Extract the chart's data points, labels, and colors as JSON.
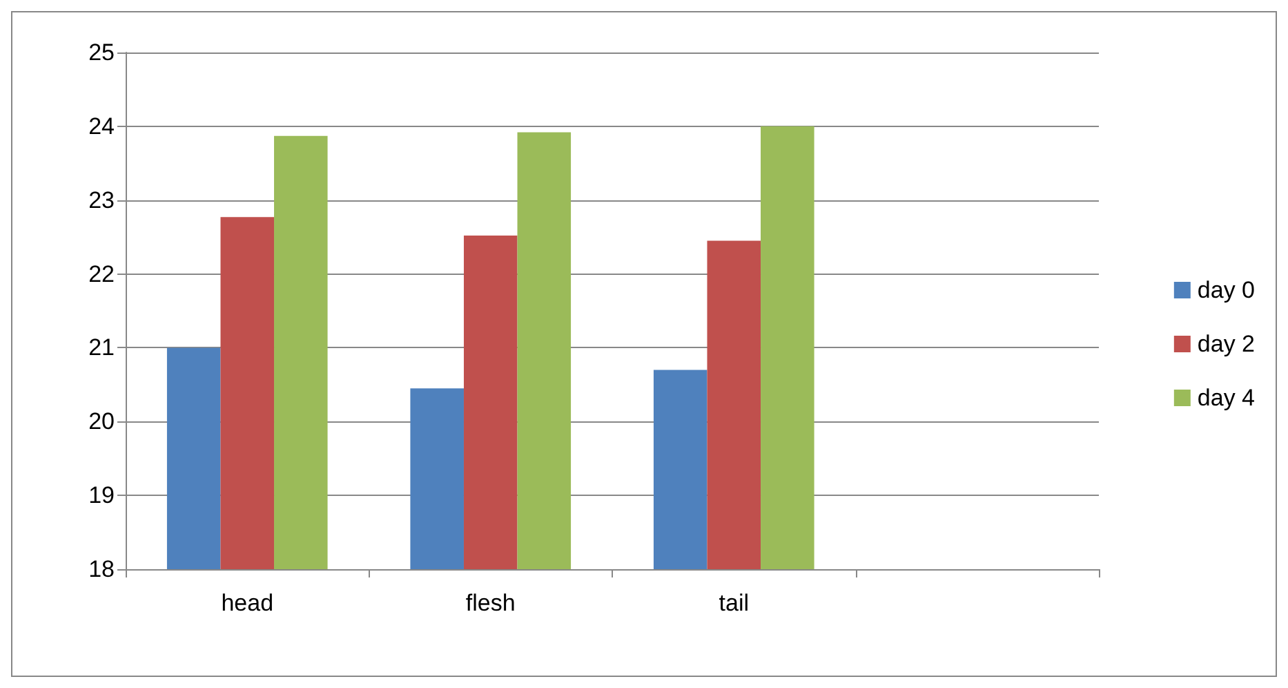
{
  "chart_data": {
    "type": "bar",
    "categories": [
      "head",
      "flesh",
      "tail",
      null
    ],
    "series": [
      {
        "name": "day 0",
        "color": "#4f81bd",
        "values": [
          21.0,
          20.45,
          20.7,
          null
        ]
      },
      {
        "name": "day 2",
        "color": "#c0504d",
        "values": [
          22.77,
          22.52,
          22.45,
          null
        ]
      },
      {
        "name": "day 4",
        "color": "#9bbb59",
        "values": [
          23.87,
          23.92,
          24.0,
          null
        ]
      }
    ],
    "ylim": [
      18,
      25
    ],
    "yticks": [
      18,
      19,
      20,
      21,
      22,
      23,
      24,
      25
    ],
    "grid": "y",
    "legend": "right"
  }
}
